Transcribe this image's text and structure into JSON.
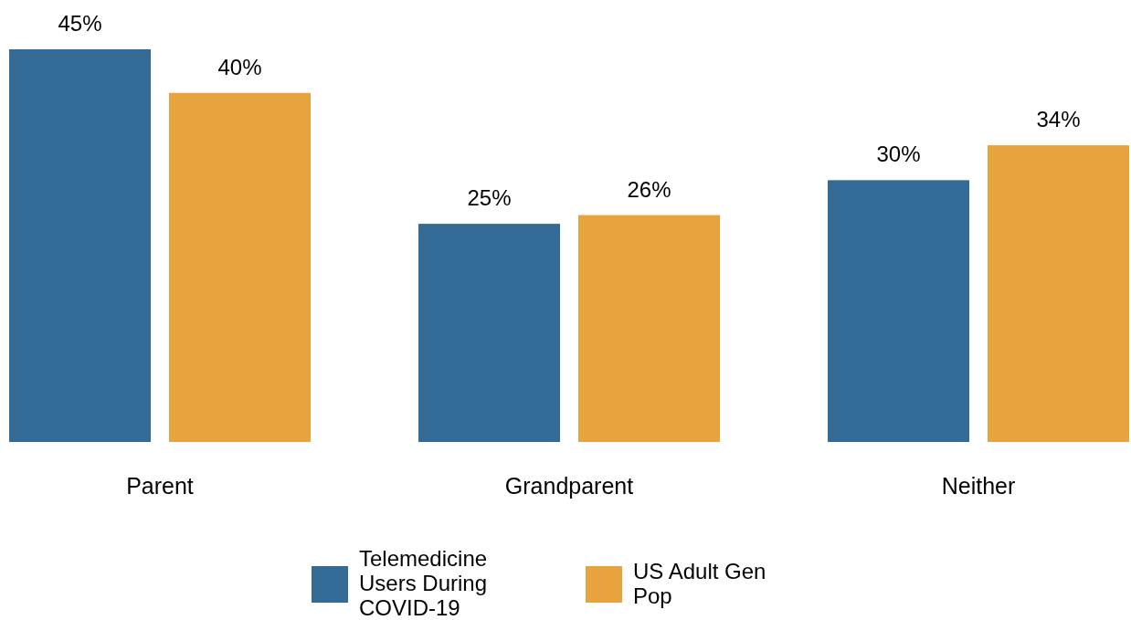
{
  "chart_data": {
    "type": "bar",
    "categories": [
      "Parent",
      "Grandparent",
      "Neither"
    ],
    "series": [
      {
        "name": "Telemedicine Users During COVID-19",
        "color": "#336a96",
        "values": [
          45,
          25,
          30
        ],
        "value_labels": [
          "45%",
          "25%",
          "30%"
        ]
      },
      {
        "name": "US Adult Gen Pop",
        "color": "#e6a33e",
        "values": [
          40,
          26,
          34
        ],
        "value_labels": [
          "40%",
          "26%",
          "34%"
        ]
      }
    ],
    "legend": "bottom"
  }
}
